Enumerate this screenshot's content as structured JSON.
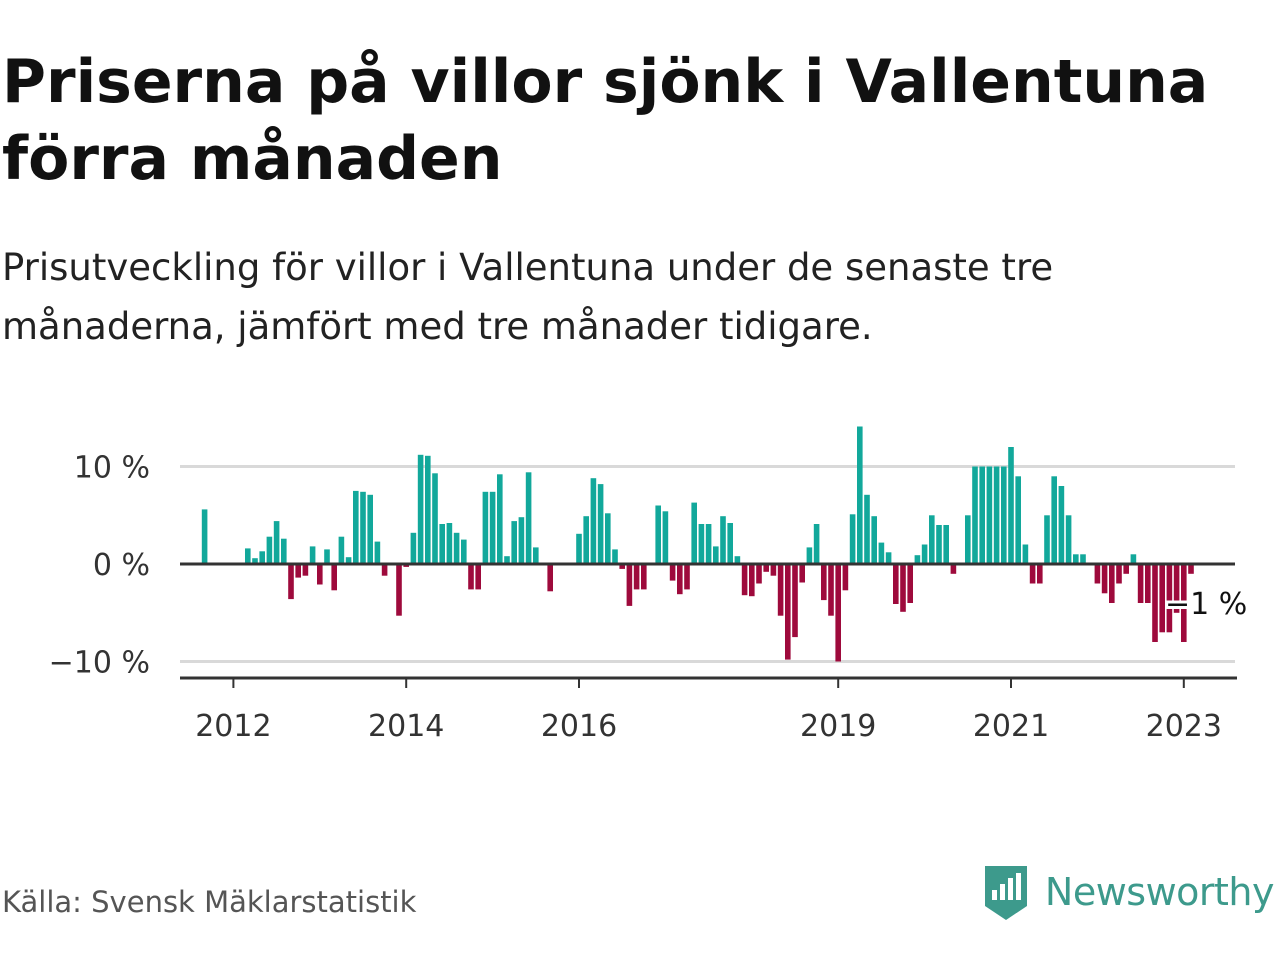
{
  "title": "Priserna på villor sjönk i Vallentuna förra månaden",
  "subtitle": "Prisutveckling för villor i Vallentuna under de senaste tre månaderna, jämfört med tre månader tidigare.",
  "source": "Källa: Svensk Mäklarstatistik",
  "brand": {
    "name": "Newsworthy",
    "icon": "newsworthy-logo-icon"
  },
  "colors": {
    "positive": "#12a89b",
    "negative": "#9e0a3c",
    "axis": "#333333",
    "grid": "#d9d9d9",
    "brand": "#3d9a8c"
  },
  "chart_data": {
    "type": "bar",
    "x_start": "2011-06",
    "x_end": "2023-07",
    "x_unit": "month",
    "ylim": [
      -10,
      12
    ],
    "y_ticks": [
      {
        "value": 10,
        "label": "10 %"
      },
      {
        "value": 0,
        "label": "0 %"
      },
      {
        "value": -10,
        "label": "−10 %"
      }
    ],
    "x_ticks": [
      {
        "date": "2012-01",
        "label": "2012"
      },
      {
        "date": "2014-01",
        "label": "2014"
      },
      {
        "date": "2016-01",
        "label": "2016"
      },
      {
        "date": "2019-01",
        "label": "2019"
      },
      {
        "date": "2021-01",
        "label": "2021"
      },
      {
        "date": "2023-01",
        "label": "2023"
      }
    ],
    "grid": true,
    "annotation": {
      "date": "2023-02",
      "label": "−1 %"
    },
    "series": [
      {
        "values": [
          [
            "2011-09",
            5.6
          ],
          [
            "2011-12",
            0
          ],
          [
            "2012-01",
            0
          ],
          [
            "2012-02",
            0
          ],
          [
            "2012-03",
            1.6
          ],
          [
            "2012-04",
            0.6
          ],
          [
            "2012-05",
            1.3
          ],
          [
            "2012-06",
            2.8
          ],
          [
            "2012-07",
            4.4
          ],
          [
            "2012-08",
            2.6
          ],
          [
            "2012-09",
            -3.6
          ],
          [
            "2012-10",
            -1.4
          ],
          [
            "2012-11",
            -1.2
          ],
          [
            "2012-12",
            1.8
          ],
          [
            "2013-01",
            -2.1
          ],
          [
            "2013-02",
            1.5
          ],
          [
            "2013-03",
            -2.7
          ],
          [
            "2013-04",
            2.8
          ],
          [
            "2013-05",
            0.7
          ],
          [
            "2013-06",
            7.5
          ],
          [
            "2013-07",
            7.4
          ],
          [
            "2013-08",
            7.1
          ],
          [
            "2013-09",
            2.3
          ],
          [
            "2013-10",
            -1.2
          ],
          [
            "2013-11",
            0
          ],
          [
            "2013-12",
            -5.3
          ],
          [
            "2014-01",
            -0.3
          ],
          [
            "2014-02",
            3.2
          ],
          [
            "2014-03",
            11.2
          ],
          [
            "2014-04",
            11.1
          ],
          [
            "2014-05",
            9.3
          ],
          [
            "2014-06",
            4.1
          ],
          [
            "2014-07",
            4.2
          ],
          [
            "2014-08",
            3.2
          ],
          [
            "2014-09",
            2.5
          ],
          [
            "2014-10",
            -2.6
          ],
          [
            "2014-11",
            -2.6
          ],
          [
            "2014-12",
            7.4
          ],
          [
            "2015-01",
            7.4
          ],
          [
            "2015-02",
            9.2
          ],
          [
            "2015-03",
            0.8
          ],
          [
            "2015-04",
            4.4
          ],
          [
            "2015-05",
            4.8
          ],
          [
            "2015-06",
            9.4
          ],
          [
            "2015-07",
            1.7
          ],
          [
            "2015-08",
            0
          ],
          [
            "2015-09",
            -2.8
          ],
          [
            "2015-10",
            0
          ],
          [
            "2015-11",
            0
          ],
          [
            "2015-12",
            0
          ],
          [
            "2016-01",
            3.1
          ],
          [
            "2016-02",
            4.9
          ],
          [
            "2016-03",
            8.8
          ],
          [
            "2016-04",
            8.2
          ],
          [
            "2016-05",
            5.2
          ],
          [
            "2016-06",
            1.5
          ],
          [
            "2016-07",
            -0.5
          ],
          [
            "2016-08",
            -4.3
          ],
          [
            "2016-09",
            -2.6
          ],
          [
            "2016-10",
            -2.6
          ],
          [
            "2016-11",
            0
          ],
          [
            "2016-12",
            6
          ],
          [
            "2017-01",
            5.4
          ],
          [
            "2017-02",
            -1.7
          ],
          [
            "2017-03",
            -3.1
          ],
          [
            "2017-04",
            -2.6
          ],
          [
            "2017-05",
            6.3
          ],
          [
            "2017-06",
            4.1
          ],
          [
            "2017-07",
            4.1
          ],
          [
            "2017-08",
            1.8
          ],
          [
            "2017-09",
            4.9
          ],
          [
            "2017-10",
            4.2
          ],
          [
            "2017-11",
            0.8
          ],
          [
            "2017-12",
            -3.2
          ],
          [
            "2018-01",
            -3.3
          ],
          [
            "2018-02",
            -2
          ],
          [
            "2018-03",
            -0.8
          ],
          [
            "2018-04",
            -1.2
          ],
          [
            "2018-05",
            -5.3
          ],
          [
            "2018-06",
            -9.8
          ],
          [
            "2018-07",
            -7.5
          ],
          [
            "2018-08",
            -1.9
          ],
          [
            "2018-09",
            1.7
          ],
          [
            "2018-10",
            4.1
          ],
          [
            "2018-11",
            -3.7
          ],
          [
            "2018-12",
            -5.3
          ],
          [
            "2019-01",
            -10
          ],
          [
            "2019-02",
            -2.7
          ],
          [
            "2019-03",
            5.1
          ],
          [
            "2019-04",
            14.1
          ],
          [
            "2019-05",
            7.1
          ],
          [
            "2019-06",
            4.9
          ],
          [
            "2019-07",
            2.2
          ],
          [
            "2019-08",
            1.2
          ],
          [
            "2019-09",
            -4.1
          ],
          [
            "2019-10",
            -4.9
          ],
          [
            "2019-11",
            -4
          ],
          [
            "2019-12",
            0.9
          ],
          [
            "2020-01",
            2
          ],
          [
            "2020-02",
            5
          ],
          [
            "2020-03",
            4
          ],
          [
            "2020-04",
            4
          ],
          [
            "2020-05",
            -1
          ],
          [
            "2020-06",
            0
          ],
          [
            "2020-07",
            5
          ],
          [
            "2020-08",
            10
          ],
          [
            "2020-09",
            10
          ],
          [
            "2020-10",
            10
          ],
          [
            "2020-11",
            10
          ],
          [
            "2020-12",
            10
          ],
          [
            "2021-01",
            12
          ],
          [
            "2021-02",
            9
          ],
          [
            "2021-03",
            2
          ],
          [
            "2021-04",
            -2
          ],
          [
            "2021-05",
            -2
          ],
          [
            "2021-06",
            5
          ],
          [
            "2021-07",
            9
          ],
          [
            "2021-08",
            8
          ],
          [
            "2021-09",
            5
          ],
          [
            "2021-10",
            1
          ],
          [
            "2021-11",
            1
          ],
          [
            "2021-12",
            0
          ],
          [
            "2022-01",
            -2
          ],
          [
            "2022-02",
            -3
          ],
          [
            "2022-03",
            -4
          ],
          [
            "2022-04",
            -2
          ],
          [
            "2022-05",
            -1
          ],
          [
            "2022-06",
            1
          ],
          [
            "2022-07",
            -4
          ],
          [
            "2022-08",
            -4
          ],
          [
            "2022-09",
            -8
          ],
          [
            "2022-10",
            -7
          ],
          [
            "2022-11",
            -7
          ],
          [
            "2022-12",
            -5
          ],
          [
            "2023-01",
            -8
          ],
          [
            "2023-02",
            -1
          ]
        ]
      }
    ]
  }
}
